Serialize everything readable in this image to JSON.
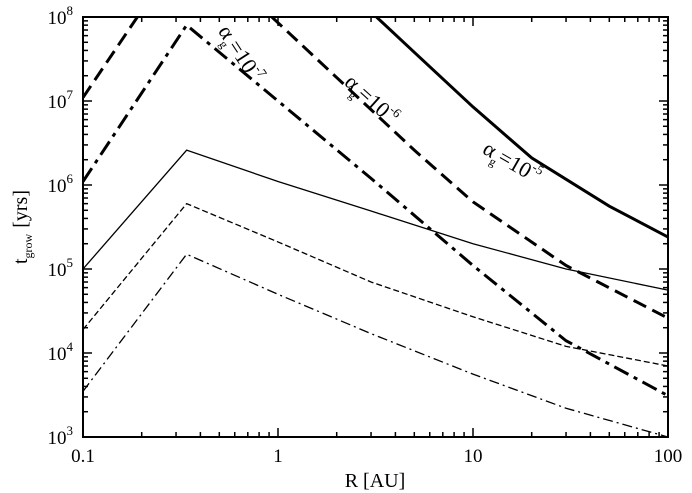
{
  "chart_data": {
    "type": "line",
    "title": "",
    "xlabel": "R [AU]",
    "ylabel": {
      "main": "t",
      "sub": "grow",
      "unit": "[yrs]"
    },
    "xscale": "log",
    "yscale": "log",
    "xlim": [
      0.1,
      100
    ],
    "ylim": [
      1000,
      100000000
    ],
    "grid": false,
    "legend": "none",
    "x_ticks": [
      {
        "value": 0.1,
        "label": "0.1"
      },
      {
        "value": 1,
        "label": "1"
      },
      {
        "value": 10,
        "label": "10"
      },
      {
        "value": 100,
        "label": "100"
      }
    ],
    "y_ticks": [
      {
        "value": 1000,
        "base": "10",
        "exp": "3"
      },
      {
        "value": 10000,
        "base": "10",
        "exp": "4"
      },
      {
        "value": 100000,
        "base": "10",
        "exp": "5"
      },
      {
        "value": 1000000,
        "base": "10",
        "exp": "6"
      },
      {
        "value": 10000000,
        "base": "10",
        "exp": "7"
      },
      {
        "value": 100000000,
        "base": "10",
        "exp": "8"
      }
    ],
    "series": [
      {
        "style": "thick-solid",
        "x": [
          3.2,
          5,
          10,
          20,
          50,
          100
        ],
        "y": [
          100000000,
          38000000,
          8500000,
          2100000,
          560000,
          240000
        ]
      },
      {
        "style": "thick-dashed",
        "x": [
          0.1,
          0.19
        ],
        "y": [
          11000000,
          100000000
        ]
      },
      {
        "style": "thick-dashed",
        "x": [
          0.93,
          2,
          5,
          10,
          30,
          100
        ],
        "y": [
          100000000,
          19000000,
          2600000,
          630000,
          110000,
          26000
        ]
      },
      {
        "style": "thick-dashdot",
        "x": [
          0.1,
          0.34,
          1,
          3,
          10,
          30,
          100
        ],
        "y": [
          1100000,
          80000000,
          10000000,
          1200000,
          110000,
          14000,
          3100
        ]
      },
      {
        "style": "thin-solid",
        "x": [
          0.1,
          0.34,
          1,
          3,
          10,
          30,
          100
        ],
        "y": [
          100000,
          2600000,
          1100000,
          490000,
          200000,
          100000,
          56000
        ]
      },
      {
        "style": "thin-dashed",
        "x": [
          0.1,
          0.34,
          1,
          3,
          10,
          30,
          100
        ],
        "y": [
          19000,
          600000,
          210000,
          70000,
          27000,
          12000,
          7000
        ]
      },
      {
        "style": "thin-dashdot",
        "x": [
          0.1,
          0.34,
          1,
          3,
          10,
          30,
          100
        ],
        "y": [
          3500,
          150000,
          50000,
          17000,
          5600,
          2200,
          1000
        ]
      }
    ],
    "annotations": [
      {
        "alpha": "α",
        "sub": "g",
        "eq": "=10",
        "sup": "-7",
        "x": 0.6,
        "y": 33000000,
        "angle": 57
      },
      {
        "alpha": "α",
        "sub": "g",
        "eq": "=10",
        "sup": "-6",
        "x": 2.85,
        "y": 9000000,
        "angle": 42
      },
      {
        "alpha": "α",
        "sub": "g",
        "eq": "=10",
        "sup": "-5",
        "x": 15.2,
        "y": 1580000,
        "angle": 30
      }
    ]
  }
}
